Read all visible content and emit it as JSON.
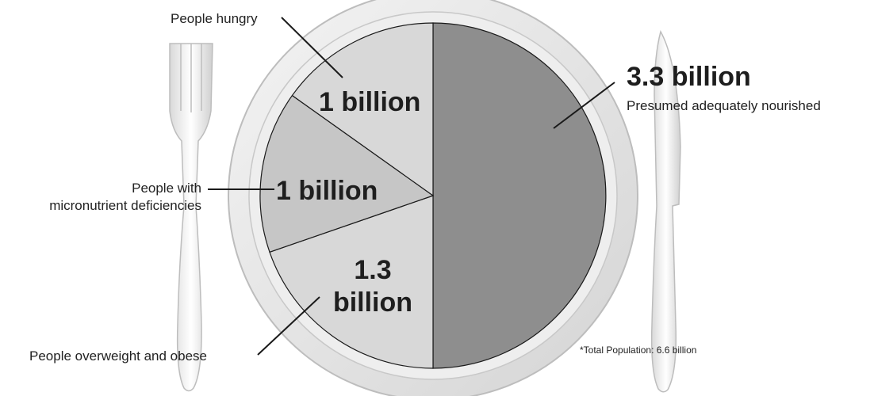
{
  "chart_data": {
    "type": "pie",
    "unit": "billion people",
    "slices": [
      {
        "value": 3.3,
        "value_label": "3.3 billion",
        "label": "Presumed adequately nourished",
        "color": "#8e8e8e"
      },
      {
        "value": 1.3,
        "value_label_lines": [
          "1.3",
          "billion"
        ],
        "label": "People overweight and obese",
        "color": "#d8d8d8"
      },
      {
        "value": 1.0,
        "value_label": "1 billion",
        "label_lines": [
          "People with",
          "micronutrient deficiencies"
        ],
        "color": "#c6c6c6"
      },
      {
        "value": 1.0,
        "value_label": "1 billion",
        "label": "People hungry",
        "color": "#d8d8d8"
      }
    ],
    "footnote": "*Total Population: 6.6 billion",
    "start": "top, clockwise"
  }
}
